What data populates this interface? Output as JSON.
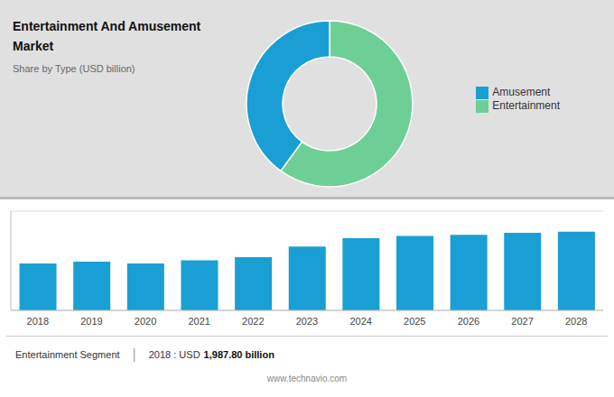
{
  "chart_data": [
    {
      "type": "pie",
      "title": "Entertainment And Amusement\nMarket",
      "subtitle": "Share by Type (USD billion)",
      "categories": [
        "Entertainment",
        "Amusement"
      ],
      "values": [
        60,
        40
      ],
      "colors": [
        "#6ecf96",
        "#1a9fd4"
      ],
      "legend": "right"
    },
    {
      "type": "bar",
      "categories": [
        "2018",
        "2019",
        "2020",
        "2021",
        "2022",
        "2023",
        "2024",
        "2025",
        "2026",
        "2027",
        "2028"
      ],
      "values": [
        1987.8,
        2060,
        1990,
        2120,
        2250,
        2700,
        3050,
        3150,
        3200,
        3280,
        3330
      ],
      "color": "#1a9fd4",
      "ylim": [
        0,
        4200
      ],
      "yticks": [
        0,
        1000,
        2000,
        3000,
        4000
      ],
      "grid": true,
      "tick_labels": "x",
      "annotations": [
        "Entertainment Segment",
        "|",
        "2018 : USD",
        "1,987.80 billion",
        "www.technavio.com"
      ]
    }
  ]
}
